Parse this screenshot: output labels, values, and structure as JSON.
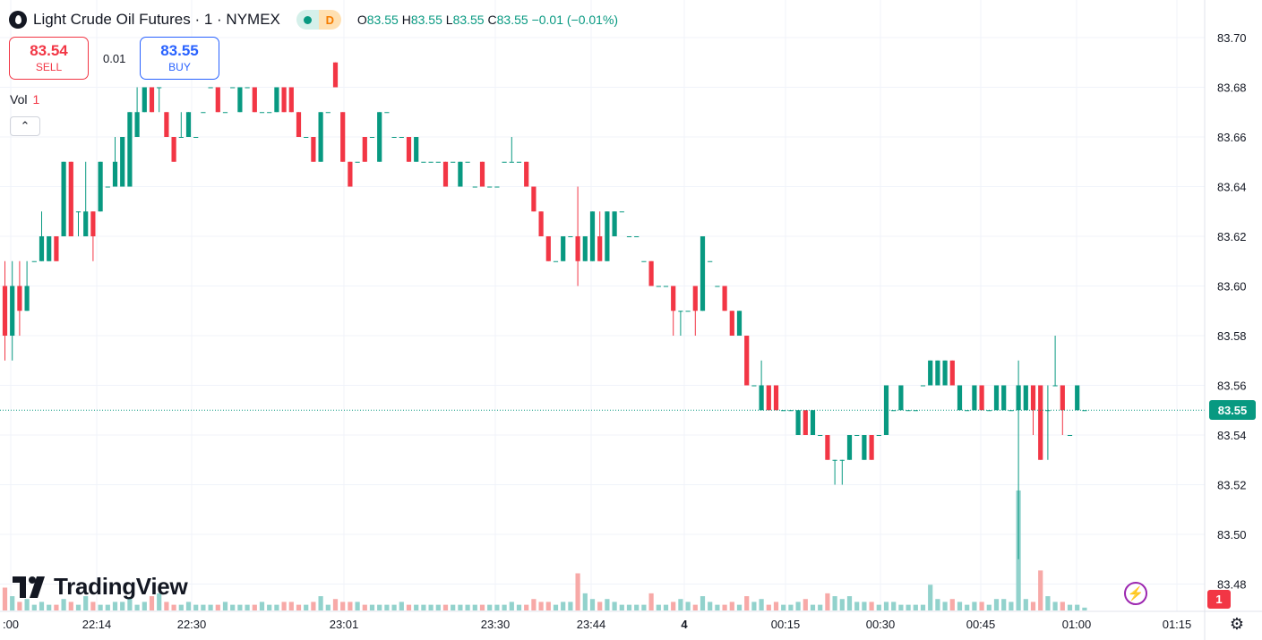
{
  "header": {
    "symbol": "Light Crude Oil Futures · 1 · NYMEX",
    "status_badge": "D",
    "ohlc": {
      "o_key": "O",
      "o": "83.55",
      "h_key": "H",
      "h": "83.55",
      "l_key": "L",
      "l": "83.55",
      "c_key": "C",
      "c": "83.55",
      "change": "−0.01 (−0.01%)"
    }
  },
  "trade": {
    "sell_price": "83.54",
    "sell_label": "SELL",
    "spread": "0.01",
    "buy_price": "83.55",
    "buy_label": "BUY"
  },
  "volume_legend": {
    "label": "Vol",
    "value": "1"
  },
  "collapse_glyph": "⌃",
  "logo_text": "TradingView",
  "last_price_tag": "83.55",
  "volume_count_badge": "1",
  "bolt_glyph": "⚡",
  "gear_glyph": "⚙",
  "colors": {
    "up": "#089981",
    "down": "#f23645",
    "up_vol": "#92d2cc",
    "down_vol": "#f7a9a7",
    "grid": "#f0f3fa"
  },
  "icons": [
    "droplet-icon",
    "market-open-dot-icon",
    "chevron-up-icon",
    "bolt-icon",
    "gear-icon",
    "tradingview-logo-icon"
  ],
  "chart_data": {
    "type": "candlestick",
    "ylim": [
      83.47,
      83.71
    ],
    "y_ticks": [
      "83.70",
      "83.68",
      "83.66",
      "83.64",
      "83.62",
      "83.60",
      "83.58",
      "83.56",
      "83.54",
      "83.52",
      "83.50",
      "83.48"
    ],
    "x_ticks": [
      ":00",
      "22:14",
      "22:30",
      "23:01",
      "23:30",
      "23:44",
      "4",
      "00:15",
      "00:30",
      "00:45",
      "01:00",
      "01:15"
    ],
    "last_price": 83.55,
    "candles": [
      [
        83.6,
        83.61,
        83.57,
        83.58,
        8
      ],
      [
        83.58,
        83.61,
        83.57,
        83.6,
        5
      ],
      [
        83.6,
        83.61,
        83.58,
        83.59,
        3
      ],
      [
        83.59,
        83.61,
        83.59,
        83.6,
        4
      ],
      [
        83.61,
        83.61,
        83.61,
        83.61,
        2
      ],
      [
        83.61,
        83.63,
        83.61,
        83.62,
        3
      ],
      [
        83.61,
        83.62,
        83.61,
        83.62,
        2
      ],
      [
        83.62,
        83.62,
        83.61,
        83.61,
        2
      ],
      [
        83.62,
        83.65,
        83.62,
        83.65,
        4
      ],
      [
        83.65,
        83.65,
        83.62,
        83.62,
        3
      ],
      [
        83.63,
        83.63,
        83.62,
        83.63,
        2
      ],
      [
        83.62,
        83.65,
        83.62,
        83.63,
        5
      ],
      [
        83.63,
        83.63,
        83.61,
        83.62,
        3
      ],
      [
        83.63,
        83.65,
        83.63,
        83.65,
        2
      ],
      [
        83.64,
        83.64,
        83.64,
        83.64,
        2
      ],
      [
        83.64,
        83.66,
        83.64,
        83.65,
        3
      ],
      [
        83.64,
        83.66,
        83.64,
        83.66,
        3
      ],
      [
        83.64,
        83.67,
        83.64,
        83.67,
        4
      ],
      [
        83.66,
        83.68,
        83.66,
        83.67,
        2
      ],
      [
        83.67,
        83.68,
        83.67,
        83.68,
        3
      ],
      [
        83.68,
        83.68,
        83.67,
        83.67,
        5
      ],
      [
        83.68,
        83.68,
        83.67,
        83.68,
        6
      ],
      [
        83.67,
        83.67,
        83.66,
        83.66,
        3
      ],
      [
        83.66,
        83.66,
        83.65,
        83.65,
        2
      ],
      [
        83.66,
        83.67,
        83.66,
        83.66,
        2
      ],
      [
        83.66,
        83.67,
        83.66,
        83.67,
        3
      ],
      [
        83.66,
        83.66,
        83.66,
        83.66,
        2
      ],
      [
        83.67,
        83.67,
        83.67,
        83.67,
        2
      ],
      [
        83.68,
        83.68,
        83.68,
        83.68,
        2
      ],
      [
        83.68,
        83.68,
        83.67,
        83.67,
        2
      ],
      [
        83.67,
        83.67,
        83.67,
        83.67,
        3
      ],
      [
        83.68,
        83.68,
        83.68,
        83.68,
        2
      ],
      [
        83.67,
        83.68,
        83.67,
        83.68,
        2
      ],
      [
        83.68,
        83.68,
        83.68,
        83.68,
        2
      ],
      [
        83.68,
        83.68,
        83.67,
        83.67,
        2
      ],
      [
        83.67,
        83.67,
        83.67,
        83.67,
        3
      ],
      [
        83.67,
        83.67,
        83.67,
        83.67,
        2
      ],
      [
        83.67,
        83.68,
        83.67,
        83.68,
        2
      ],
      [
        83.68,
        83.68,
        83.67,
        83.67,
        3
      ],
      [
        83.68,
        83.68,
        83.67,
        83.67,
        3
      ],
      [
        83.67,
        83.67,
        83.66,
        83.66,
        2
      ],
      [
        83.66,
        83.66,
        83.66,
        83.66,
        2
      ],
      [
        83.66,
        83.66,
        83.65,
        83.65,
        3
      ],
      [
        83.65,
        83.67,
        83.65,
        83.67,
        5
      ],
      [
        83.67,
        83.67,
        83.67,
        83.67,
        2
      ],
      [
        83.69,
        83.69,
        83.68,
        83.68,
        4
      ],
      [
        83.67,
        83.67,
        83.65,
        83.65,
        3
      ],
      [
        83.65,
        83.65,
        83.64,
        83.64,
        3
      ],
      [
        83.65,
        83.65,
        83.65,
        83.65,
        3
      ],
      [
        83.66,
        83.66,
        83.65,
        83.65,
        2
      ],
      [
        83.66,
        83.66,
        83.66,
        83.66,
        2
      ],
      [
        83.65,
        83.67,
        83.65,
        83.67,
        2
      ],
      [
        83.67,
        83.67,
        83.67,
        83.67,
        2
      ],
      [
        83.66,
        83.66,
        83.66,
        83.66,
        2
      ],
      [
        83.66,
        83.66,
        83.66,
        83.66,
        3
      ],
      [
        83.66,
        83.66,
        83.65,
        83.65,
        2
      ],
      [
        83.65,
        83.66,
        83.65,
        83.66,
        2
      ],
      [
        83.65,
        83.65,
        83.65,
        83.65,
        2
      ],
      [
        83.65,
        83.65,
        83.65,
        83.65,
        2
      ],
      [
        83.65,
        83.65,
        83.65,
        83.65,
        2
      ],
      [
        83.65,
        83.65,
        83.64,
        83.64,
        2
      ],
      [
        83.65,
        83.65,
        83.65,
        83.65,
        2
      ],
      [
        83.64,
        83.65,
        83.64,
        83.65,
        2
      ],
      [
        83.65,
        83.65,
        83.65,
        83.65,
        2
      ],
      [
        83.64,
        83.64,
        83.64,
        83.64,
        2
      ],
      [
        83.65,
        83.65,
        83.64,
        83.64,
        2
      ],
      [
        83.64,
        83.64,
        83.64,
        83.64,
        2
      ],
      [
        83.64,
        83.64,
        83.64,
        83.64,
        2
      ],
      [
        83.65,
        83.65,
        83.65,
        83.65,
        2
      ],
      [
        83.65,
        83.66,
        83.65,
        83.65,
        3
      ],
      [
        83.65,
        83.65,
        83.65,
        83.65,
        2
      ],
      [
        83.65,
        83.65,
        83.64,
        83.64,
        2
      ],
      [
        83.64,
        83.64,
        83.63,
        83.63,
        4
      ],
      [
        83.63,
        83.63,
        83.62,
        83.62,
        3
      ],
      [
        83.62,
        83.62,
        83.61,
        83.61,
        3
      ],
      [
        83.61,
        83.61,
        83.61,
        83.61,
        2
      ],
      [
        83.61,
        83.62,
        83.61,
        83.62,
        3
      ],
      [
        83.62,
        83.62,
        83.62,
        83.62,
        3
      ],
      [
        83.62,
        83.64,
        83.6,
        83.61,
        13
      ],
      [
        83.61,
        83.62,
        83.61,
        83.62,
        6
      ],
      [
        83.61,
        83.63,
        83.61,
        83.63,
        4
      ],
      [
        83.62,
        83.63,
        83.61,
        83.61,
        3
      ],
      [
        83.61,
        83.63,
        83.61,
        83.63,
        4
      ],
      [
        83.62,
        83.63,
        83.62,
        83.63,
        3
      ],
      [
        83.63,
        83.63,
        83.63,
        83.63,
        2
      ],
      [
        83.62,
        83.62,
        83.62,
        83.62,
        2
      ],
      [
        83.62,
        83.62,
        83.62,
        83.62,
        2
      ],
      [
        83.61,
        83.61,
        83.61,
        83.61,
        2
      ],
      [
        83.61,
        83.61,
        83.6,
        83.6,
        6
      ],
      [
        83.6,
        83.6,
        83.6,
        83.6,
        2
      ],
      [
        83.6,
        83.6,
        83.6,
        83.6,
        2
      ],
      [
        83.6,
        83.6,
        83.58,
        83.59,
        3
      ],
      [
        83.59,
        83.59,
        83.58,
        83.59,
        4
      ],
      [
        83.59,
        83.59,
        83.59,
        83.59,
        3
      ],
      [
        83.6,
        83.6,
        83.58,
        83.59,
        2
      ],
      [
        83.59,
        83.62,
        83.59,
        83.62,
        5
      ],
      [
        83.61,
        83.61,
        83.61,
        83.61,
        3
      ],
      [
        83.6,
        83.6,
        83.6,
        83.6,
        2
      ],
      [
        83.6,
        83.6,
        83.59,
        83.59,
        2
      ],
      [
        83.59,
        83.59,
        83.58,
        83.58,
        3
      ],
      [
        83.58,
        83.59,
        83.58,
        83.59,
        2
      ],
      [
        83.58,
        83.58,
        83.56,
        83.56,
        5
      ],
      [
        83.56,
        83.56,
        83.56,
        83.56,
        3
      ],
      [
        83.55,
        83.57,
        83.55,
        83.56,
        4
      ],
      [
        83.56,
        83.56,
        83.55,
        83.55,
        2
      ],
      [
        83.56,
        83.56,
        83.55,
        83.55,
        3
      ],
      [
        83.55,
        83.55,
        83.55,
        83.55,
        2
      ],
      [
        83.55,
        83.55,
        83.55,
        83.55,
        2
      ],
      [
        83.54,
        83.55,
        83.54,
        83.55,
        3
      ],
      [
        83.55,
        83.55,
        83.54,
        83.54,
        4
      ],
      [
        83.54,
        83.55,
        83.54,
        83.55,
        2
      ],
      [
        83.54,
        83.54,
        83.54,
        83.54,
        2
      ],
      [
        83.54,
        83.54,
        83.53,
        83.53,
        6
      ],
      [
        83.53,
        83.53,
        83.52,
        83.53,
        5
      ],
      [
        83.53,
        83.53,
        83.52,
        83.53,
        4
      ],
      [
        83.53,
        83.54,
        83.53,
        83.54,
        5
      ],
      [
        83.54,
        83.54,
        83.54,
        83.54,
        3
      ],
      [
        83.53,
        83.54,
        83.53,
        83.54,
        3
      ],
      [
        83.54,
        83.54,
        83.53,
        83.53,
        3
      ],
      [
        83.54,
        83.54,
        83.54,
        83.54,
        2
      ],
      [
        83.54,
        83.56,
        83.54,
        83.56,
        3
      ],
      [
        83.55,
        83.55,
        83.55,
        83.55,
        3
      ],
      [
        83.55,
        83.56,
        83.55,
        83.56,
        2
      ],
      [
        83.55,
        83.55,
        83.55,
        83.55,
        2
      ],
      [
        83.55,
        83.55,
        83.55,
        83.55,
        2
      ],
      [
        83.56,
        83.56,
        83.56,
        83.56,
        2
      ],
      [
        83.56,
        83.57,
        83.56,
        83.57,
        9
      ],
      [
        83.56,
        83.57,
        83.56,
        83.57,
        4
      ],
      [
        83.56,
        83.57,
        83.56,
        83.57,
        3
      ],
      [
        83.57,
        83.57,
        83.56,
        83.56,
        4
      ],
      [
        83.55,
        83.56,
        83.55,
        83.56,
        3
      ],
      [
        83.55,
        83.55,
        83.55,
        83.55,
        2
      ],
      [
        83.55,
        83.56,
        83.55,
        83.56,
        3
      ],
      [
        83.56,
        83.56,
        83.55,
        83.55,
        3
      ],
      [
        83.55,
        83.55,
        83.55,
        83.55,
        2
      ],
      [
        83.55,
        83.56,
        83.55,
        83.56,
        4
      ],
      [
        83.55,
        83.56,
        83.55,
        83.56,
        4
      ],
      [
        83.55,
        83.55,
        83.55,
        83.55,
        3
      ],
      [
        83.55,
        83.57,
        83.49,
        83.56,
        42
      ],
      [
        83.55,
        83.56,
        83.55,
        83.56,
        4
      ],
      [
        83.56,
        83.56,
        83.54,
        83.55,
        3
      ],
      [
        83.56,
        83.56,
        83.53,
        83.53,
        14
      ],
      [
        83.55,
        83.56,
        83.53,
        83.55,
        5
      ],
      [
        83.56,
        83.58,
        83.56,
        83.56,
        3
      ],
      [
        83.56,
        83.56,
        83.54,
        83.55,
        3
      ],
      [
        83.54,
        83.54,
        83.54,
        83.54,
        2
      ],
      [
        83.55,
        83.56,
        83.55,
        83.56,
        2
      ],
      [
        83.55,
        83.55,
        83.55,
        83.55,
        1
      ]
    ]
  }
}
